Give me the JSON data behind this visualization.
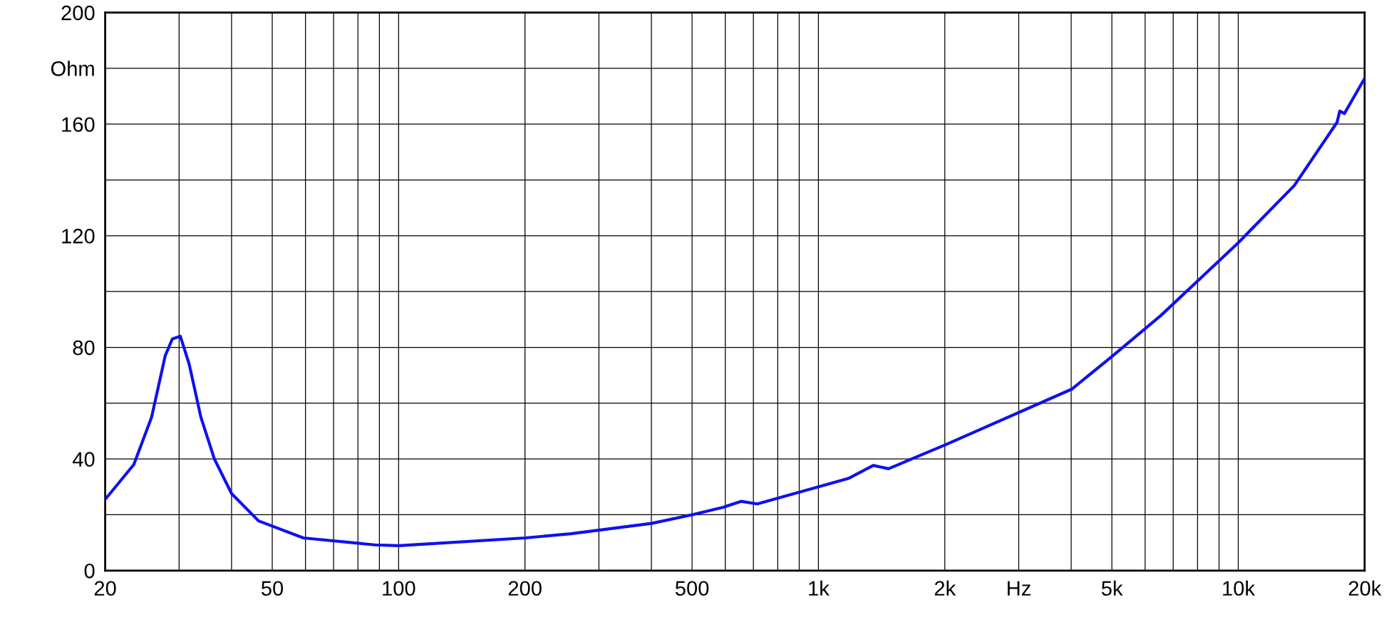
{
  "chart_data": {
    "type": "line",
    "log": "x",
    "grid": true,
    "marker": "none",
    "line_style": "solid",
    "xlim": [
      20,
      20000
    ],
    "ylim": [
      0,
      200
    ],
    "xticks": [
      20,
      {
        "value": 30,
        "label": null
      },
      {
        "value": 40,
        "label": null
      },
      50,
      {
        "value": 60,
        "label": null
      },
      {
        "value": 70,
        "label": null
      },
      {
        "value": 80,
        "label": null
      },
      {
        "value": 90,
        "label": null
      },
      100,
      200,
      {
        "value": 300,
        "label": null
      },
      {
        "value": 400,
        "label": null
      },
      500,
      {
        "value": 600,
        "label": null
      },
      {
        "value": 700,
        "label": null
      },
      {
        "value": 800,
        "label": null
      },
      {
        "value": 900,
        "label": null
      },
      {
        "value": 1000,
        "label": "1k"
      },
      {
        "value": 2000,
        "label": "2k"
      },
      {
        "value": 3000,
        "label": "Hz"
      },
      {
        "value": 4000,
        "label": null
      },
      {
        "value": 5000,
        "label": "5k"
      },
      {
        "value": 6000,
        "label": null
      },
      {
        "value": 7000,
        "label": null
      },
      {
        "value": 8000,
        "label": null
      },
      {
        "value": 9000,
        "label": null
      },
      {
        "value": 10000,
        "label": "10k"
      },
      {
        "value": 20000,
        "label": "20k"
      }
    ],
    "yticks": [
      0,
      {
        "value": 20,
        "label": null
      },
      40,
      {
        "value": 60,
        "label": null
      },
      80,
      {
        "value": 100,
        "label": null
      },
      120,
      {
        "value": 140,
        "label": null
      },
      160,
      {
        "value": 180,
        "label": "Ohm"
      },
      200
    ],
    "series": [
      {
        "color": "#1010f0",
        "x": [
          20,
          23.4,
          25.8,
          27.8,
          28.9,
          30.2,
          31.7,
          33.8,
          36.4,
          40,
          46.4,
          59.3,
          87.8,
          100,
          200,
          257,
          400,
          500,
          593,
          654,
          715,
          1000,
          1178,
          1352,
          1469,
          2000,
          4010,
          5000,
          6540,
          10000,
          13600,
          17200,
          17450,
          17900,
          20000
        ],
        "values": [
          25.5,
          38,
          55,
          77,
          83,
          84,
          74,
          55,
          40,
          27.6,
          17.8,
          11.7,
          9.2,
          8.9,
          11.7,
          13.2,
          16.9,
          20,
          22.7,
          24.8,
          23.9,
          30,
          33,
          37.7,
          36.5,
          45,
          65,
          76.7,
          91.4,
          117.5,
          138,
          160.7,
          164.7,
          163.8,
          176.4
        ]
      }
    ]
  }
}
